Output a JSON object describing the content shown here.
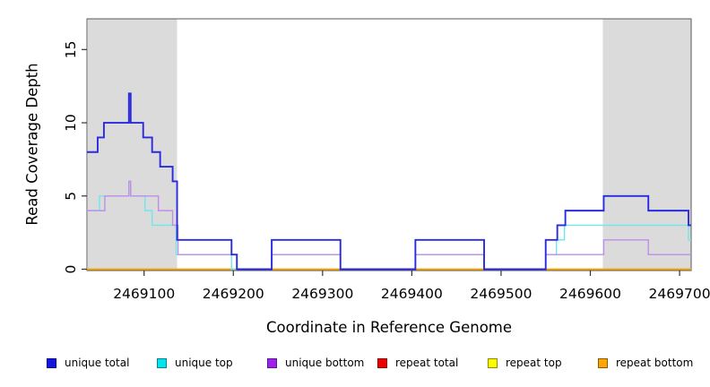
{
  "chart_data": {
    "type": "line",
    "subtype": "step",
    "title": "",
    "xlabel": "Coordinate in Reference Genome",
    "ylabel": "Read Coverage Depth",
    "xlim": [
      2469036,
      2469713
    ],
    "ylim": [
      0,
      17.1
    ],
    "x_ticks": [
      2469100,
      2469200,
      2469300,
      2469400,
      2469500,
      2469600,
      2469700
    ],
    "y_ticks": [
      0,
      5,
      10,
      15
    ],
    "grid": false,
    "legend_position": "bottom",
    "band_color": "#DBDBDB",
    "axis_color": "#5A5A5A",
    "tick_color": "#333333",
    "shaded_regions": [
      {
        "from": 2469037,
        "to": 2469137
      },
      {
        "from": 2469614,
        "to": 2469713
      }
    ],
    "series": [
      {
        "name": "repeat total",
        "line_color": "#DD0000",
        "width": 1.4,
        "points": [
          [
            2469036,
            0
          ]
        ]
      },
      {
        "name": "repeat top",
        "line_color": "#FFFF00",
        "width": 1.4,
        "points": [
          [
            2469036,
            0
          ]
        ]
      },
      {
        "name": "repeat bottom",
        "line_color": "#FFA500",
        "width": 1.6,
        "points": [
          [
            2469036,
            0
          ]
        ]
      },
      {
        "name": "unique top",
        "line_color": "#6FE7EB",
        "width": 1.4,
        "points": [
          [
            2469036,
            4
          ],
          [
            2469050,
            5
          ],
          [
            2469083,
            6
          ],
          [
            2469085,
            5
          ],
          [
            2469101,
            4
          ],
          [
            2469109,
            3
          ],
          [
            2469136,
            1
          ],
          [
            2469198,
            0
          ],
          [
            2469243,
            1
          ],
          [
            2469320,
            0
          ],
          [
            2469404,
            1
          ],
          [
            2469481,
            0
          ],
          [
            2469550,
            1
          ],
          [
            2469562,
            2
          ],
          [
            2469571,
            3
          ],
          [
            2469710,
            2
          ]
        ]
      },
      {
        "name": "unique bottom",
        "line_color": "#BD8FE6",
        "width": 1.4,
        "points": [
          [
            2469036,
            4
          ],
          [
            2469056,
            5
          ],
          [
            2469083,
            6
          ],
          [
            2469085,
            5
          ],
          [
            2469116,
            4
          ],
          [
            2469132,
            3
          ],
          [
            2469138,
            1
          ],
          [
            2469204,
            0
          ],
          [
            2469243,
            1
          ],
          [
            2469320,
            0
          ],
          [
            2469404,
            1
          ],
          [
            2469481,
            0
          ],
          [
            2469550,
            1
          ],
          [
            2469615,
            2
          ],
          [
            2469665,
            1
          ]
        ]
      },
      {
        "name": "unique total",
        "line_color": "#2A2ADF",
        "width": 1.9,
        "points": [
          [
            2469036,
            8
          ],
          [
            2469048,
            9
          ],
          [
            2469055,
            10
          ],
          [
            2469083,
            12
          ],
          [
            2469085,
            10
          ],
          [
            2469099,
            9
          ],
          [
            2469109,
            8
          ],
          [
            2469118,
            7
          ],
          [
            2469132,
            6
          ],
          [
            2469137,
            2
          ],
          [
            2469198,
            1
          ],
          [
            2469204,
            0
          ],
          [
            2469243,
            2
          ],
          [
            2469320,
            0
          ],
          [
            2469404,
            2
          ],
          [
            2469481,
            0
          ],
          [
            2469550,
            2
          ],
          [
            2469563,
            3
          ],
          [
            2469572,
            4
          ],
          [
            2469615,
            5
          ],
          [
            2469665,
            4
          ],
          [
            2469710,
            3
          ]
        ]
      }
    ]
  },
  "legend": {
    "items": [
      {
        "label": "unique total",
        "fill": "#1414E0",
        "border": "#00008B"
      },
      {
        "label": "unique top",
        "fill": "#00E5EE",
        "border": "#00868B"
      },
      {
        "label": "unique bottom",
        "fill": "#A020F0",
        "border": "#551A8B"
      },
      {
        "label": "repeat total",
        "fill": "#EE0000",
        "border": "#8B0000"
      },
      {
        "label": "repeat top",
        "fill": "#FFFF00",
        "border": "#8B8B00"
      },
      {
        "label": "repeat bottom",
        "fill": "#FFA500",
        "border": "#8B5A00"
      }
    ]
  }
}
